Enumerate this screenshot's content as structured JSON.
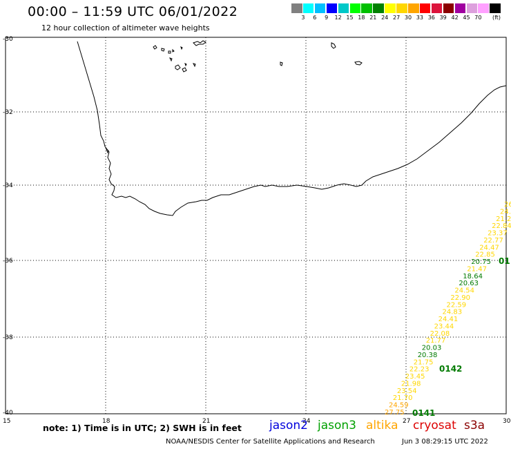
{
  "header": {
    "title": "00:00 – 11:59 UTC 06/01/2022",
    "subtitle": "12 hour collection of altimeter wave heights"
  },
  "legend": {
    "colors": [
      "#808080",
      "#00ffff",
      "#00c0ff",
      "#0000ff",
      "#00c8c8",
      "#00ff00",
      "#00c000",
      "#008000",
      "#ffff00",
      "#ffd700",
      "#ffa500",
      "#ff0000",
      "#dc143c",
      "#8b0000",
      "#a000a0",
      "#dda0dd",
      "#ffa0ff",
      "#000000"
    ],
    "labels": [
      "3",
      "6",
      "9",
      "12",
      "15",
      "18",
      "21",
      "24",
      "27",
      "30",
      "33",
      "36",
      "39",
      "42",
      "45",
      "70"
    ],
    "unit": "(ft)"
  },
  "axes": {
    "lat_labels": [
      "-30",
      "-32",
      "-34",
      "-36",
      "-38",
      "-40"
    ],
    "lon_labels": [
      "15",
      "18",
      "21",
      "24",
      "27",
      "30"
    ]
  },
  "wave_heights": [
    {
      "value": "26",
      "color": "#ffd700"
    },
    {
      "value": "24.",
      "color": "#ffd700"
    },
    {
      "value": "21.2",
      "color": "#ffd700"
    },
    {
      "value": "22.84",
      "color": "#ffd700"
    },
    {
      "value": "23.37",
      "color": "#ffd700"
    },
    {
      "value": "22.77",
      "color": "#ffd700"
    },
    {
      "value": "24.47",
      "color": "#ffd700"
    },
    {
      "value": "22.85",
      "color": "#ffd700"
    },
    {
      "value": "20.75",
      "color": "#007a00"
    },
    {
      "value": "21.47",
      "color": "#ffd700"
    },
    {
      "value": "18.64",
      "color": "#007a00"
    },
    {
      "value": "20.63",
      "color": "#007a00"
    },
    {
      "value": "24.54",
      "color": "#ffd700"
    },
    {
      "value": "22.90",
      "color": "#ffd700"
    },
    {
      "value": "22.59",
      "color": "#ffd700"
    },
    {
      "value": "24.83",
      "color": "#ffd700"
    },
    {
      "value": "24.41",
      "color": "#ffd700"
    },
    {
      "value": "23.44",
      "color": "#ffd700"
    },
    {
      "value": "22.08",
      "color": "#ffd700"
    },
    {
      "value": "21.77",
      "color": "#ffd700"
    },
    {
      "value": "20.03",
      "color": "#007a00"
    },
    {
      "value": "20.38",
      "color": "#007a00"
    },
    {
      "value": "21.75",
      "color": "#ffd700"
    },
    {
      "value": "22.23",
      "color": "#ffd700"
    },
    {
      "value": "23.45",
      "color": "#ffd700"
    },
    {
      "value": "21.98",
      "color": "#ffd700"
    },
    {
      "value": "23.54",
      "color": "#ffd700"
    },
    {
      "value": "21.70",
      "color": "#ffd700"
    },
    {
      "value": "24.59",
      "color": "#ffa500"
    },
    {
      "value": "27.75",
      "color": "#ffa500"
    }
  ],
  "pass_labels": [
    "01",
    "0142",
    "0141"
  ],
  "note": "note: 1) Time is in UTC; 2) SWH is in feet",
  "satellites": [
    {
      "name": "jason2",
      "color": "#0000dd"
    },
    {
      "name": "jason3",
      "color": "#00a000"
    },
    {
      "name": "altika",
      "color": "#ffa500"
    },
    {
      "name": "cryosat",
      "color": "#dd0000"
    },
    {
      "name": "s3a",
      "color": "#8b0000"
    }
  ],
  "footer": {
    "org": "NOAA/NESDIS Center for Satellite Applications and Research",
    "timestamp": "Jun  3 08:29:15 UTC 2022"
  }
}
